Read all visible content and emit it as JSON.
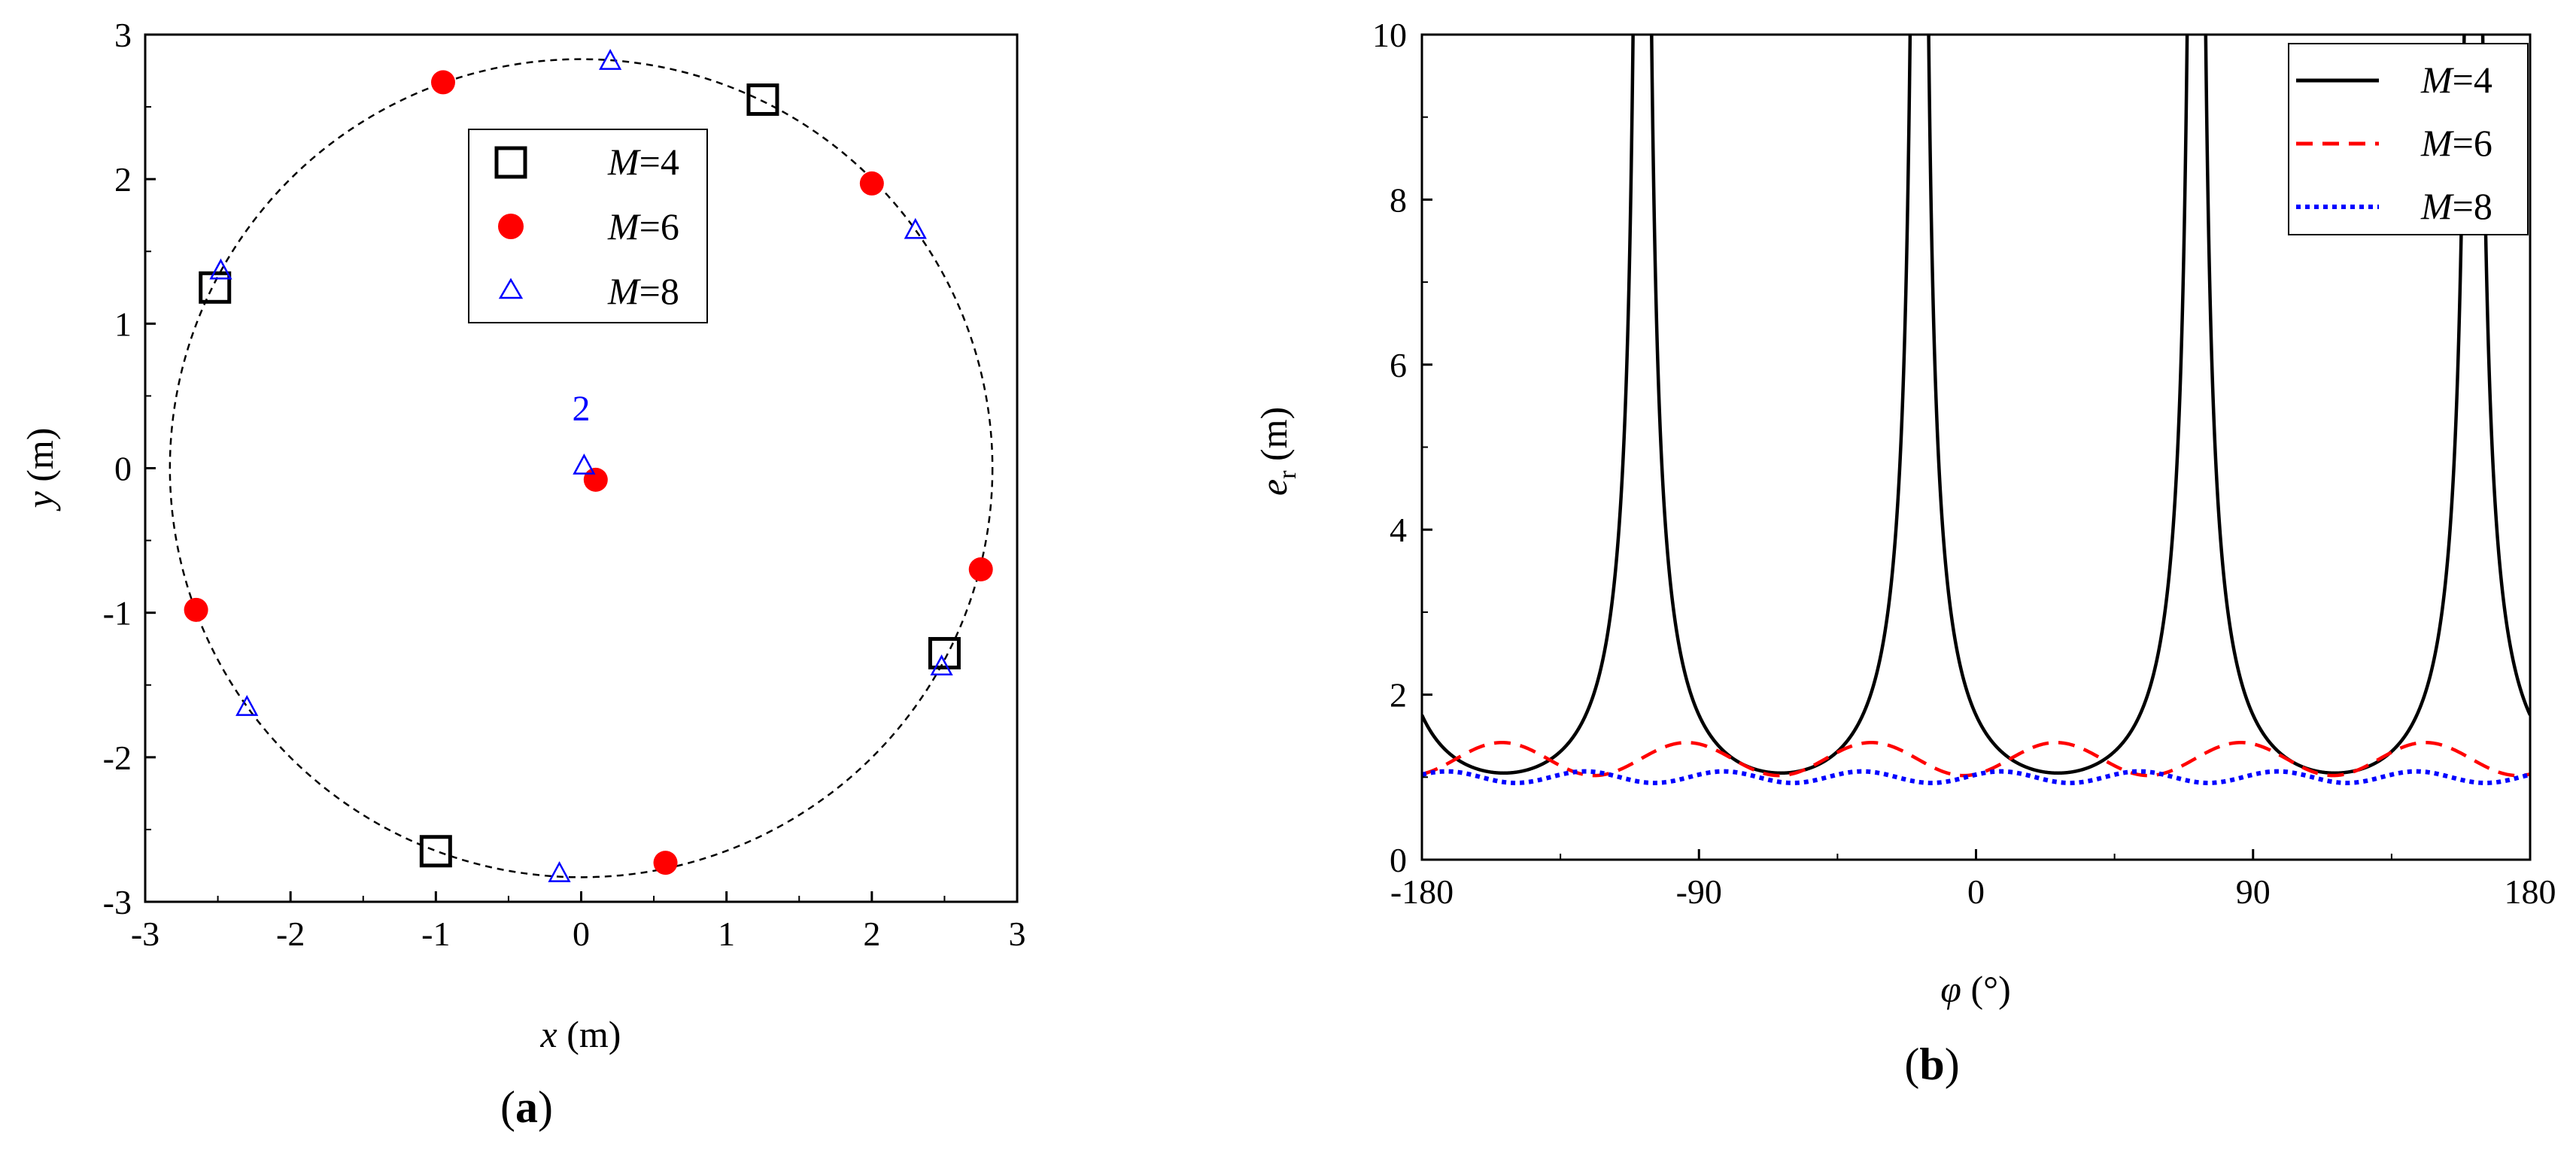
{
  "chart_data": [
    {
      "type": "scatter",
      "panel_label_open": "(",
      "panel_label": "a",
      "panel_label_close": ")",
      "xlabel": "x",
      "ylabel": "y",
      "unit": " (m)",
      "xlim": [
        -3,
        3
      ],
      "ylim": [
        -3,
        3
      ],
      "xticks": [
        "-3",
        "-2",
        "-1",
        "0",
        "1",
        "2",
        "3"
      ],
      "yticks": [
        "-3",
        "-2",
        "-1",
        "0",
        "1",
        "2",
        "3"
      ],
      "circle_radius": 2.83,
      "annotation": {
        "text": "2",
        "x": 0.0,
        "y": 0.33
      },
      "series": [
        {
          "name": "M=4",
          "legend_var": "M",
          "legend_val": "=4",
          "marker": "square",
          "color": "#000000",
          "points": [
            [
              1.25,
              2.55
            ],
            [
              -2.52,
              1.25
            ],
            [
              -1.0,
              -2.65
            ],
            [
              2.5,
              -1.28
            ]
          ]
        },
        {
          "name": "M=6",
          "legend_var": "M",
          "legend_val": "=6",
          "marker": "circle",
          "color": "#ff0000",
          "points": [
            [
              -0.95,
              2.67
            ],
            [
              2.0,
              1.97
            ],
            [
              -2.65,
              -0.98
            ],
            [
              2.75,
              -0.7
            ],
            [
              0.58,
              -2.73
            ],
            [
              0.1,
              -0.08
            ]
          ]
        },
        {
          "name": "M=8",
          "legend_var": "M",
          "legend_val": "=8",
          "marker": "triangle",
          "color": "#0000ff",
          "points": [
            [
              0.2,
              2.82
            ],
            [
              2.3,
              1.65
            ],
            [
              -2.48,
              1.37
            ],
            [
              -2.3,
              -1.65
            ],
            [
              2.48,
              -1.37
            ],
            [
              -0.15,
              -2.8
            ],
            [
              0.02,
              0.02
            ]
          ]
        }
      ]
    },
    {
      "type": "line",
      "panel_label_open": "(",
      "panel_label": "b",
      "panel_label_close": ")",
      "xlabel": "φ",
      "xunit": " (°)",
      "ylabel": "e",
      "ylabel_sub": "r",
      "yunit": " (m)",
      "xlim": [
        -180,
        180
      ],
      "ylim": [
        0,
        10
      ],
      "xticks": [
        "-180",
        "-90",
        "0",
        "90",
        "180"
      ],
      "yticks": [
        "0",
        "2",
        "4",
        "6",
        "8",
        "10"
      ],
      "series": [
        {
          "name": "M=4",
          "legend_var": "M",
          "legend_val": "=4",
          "style": "solid",
          "color": "#000000",
          "period": 90,
          "phase": 26.6,
          "model": "1/|cos|"
        },
        {
          "name": "M=6",
          "legend_var": "M",
          "legend_val": "=6",
          "style": "dashed",
          "color": "#ff0000",
          "mean": 1.22,
          "amplitude": 0.2,
          "period": 60,
          "peak_at": 26
        },
        {
          "name": "M=8",
          "legend_var": "M",
          "legend_val": "=8",
          "style": "dotted",
          "color": "#0000ff",
          "mean": 1.0,
          "amplitude": 0.07,
          "period": 45,
          "peak_at": 8
        }
      ]
    }
  ]
}
